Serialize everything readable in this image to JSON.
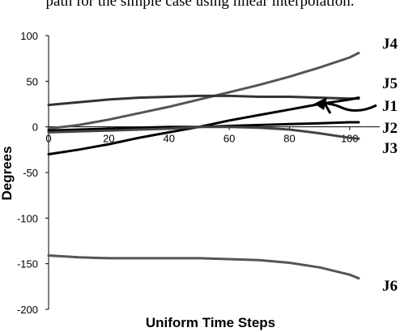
{
  "header_text": "path for the simple case using linear interpolation.",
  "chart_data": {
    "type": "line",
    "title": "",
    "xlabel": "Uniform Time Steps",
    "ylabel": "Degrees",
    "xlim": [
      0,
      110
    ],
    "ylim": [
      -200,
      100
    ],
    "xticks": [
      "0",
      "20",
      "40",
      "60",
      "80",
      "100"
    ],
    "yticks": [
      "100",
      "50",
      "0",
      "-50",
      "-100",
      "-150",
      "-200"
    ],
    "grid": false,
    "legend": "none",
    "series": [
      {
        "name": "J4",
        "color": "#555555",
        "x": [
          0,
          10,
          20,
          30,
          40,
          50,
          60,
          70,
          80,
          90,
          100,
          103
        ],
        "y": [
          -2,
          2,
          8,
          15,
          22,
          30,
          38,
          46,
          55,
          65,
          76,
          81
        ]
      },
      {
        "name": "J5",
        "color": "#333333",
        "x": [
          0,
          10,
          20,
          30,
          40,
          50,
          60,
          70,
          80,
          90,
          100,
          103
        ],
        "y": [
          24,
          27,
          30,
          32,
          33,
          34,
          34,
          33,
          33,
          32,
          31,
          31
        ]
      },
      {
        "name": "J1",
        "color": "#000000",
        "x": [
          0,
          10,
          20,
          30,
          40,
          50,
          60,
          70,
          80,
          90,
          100,
          103
        ],
        "y": [
          -30,
          -25,
          -19,
          -12,
          -6,
          0,
          7,
          13,
          19,
          25,
          30,
          32
        ]
      },
      {
        "name": "J2",
        "color": "#000000",
        "x": [
          0,
          10,
          20,
          30,
          40,
          50,
          60,
          70,
          80,
          90,
          100,
          103
        ],
        "y": [
          -4,
          -3,
          -2,
          -1,
          0,
          0,
          1,
          2,
          3,
          4,
          5,
          5
        ]
      },
      {
        "name": "J3",
        "color": "#444444",
        "x": [
          0,
          10,
          20,
          30,
          40,
          50,
          60,
          70,
          80,
          90,
          100,
          103
        ],
        "y": [
          -6,
          -5,
          -4,
          -3,
          -2,
          0,
          0,
          -1,
          -3,
          -7,
          -12,
          -13
        ]
      },
      {
        "name": "J6",
        "color": "#555555",
        "x": [
          0,
          10,
          20,
          30,
          40,
          50,
          60,
          70,
          80,
          90,
          100,
          103
        ],
        "y": [
          -141,
          -143,
          -144,
          -144,
          -144,
          -144,
          -145,
          -146,
          -149,
          -154,
          -162,
          -166
        ]
      }
    ]
  }
}
